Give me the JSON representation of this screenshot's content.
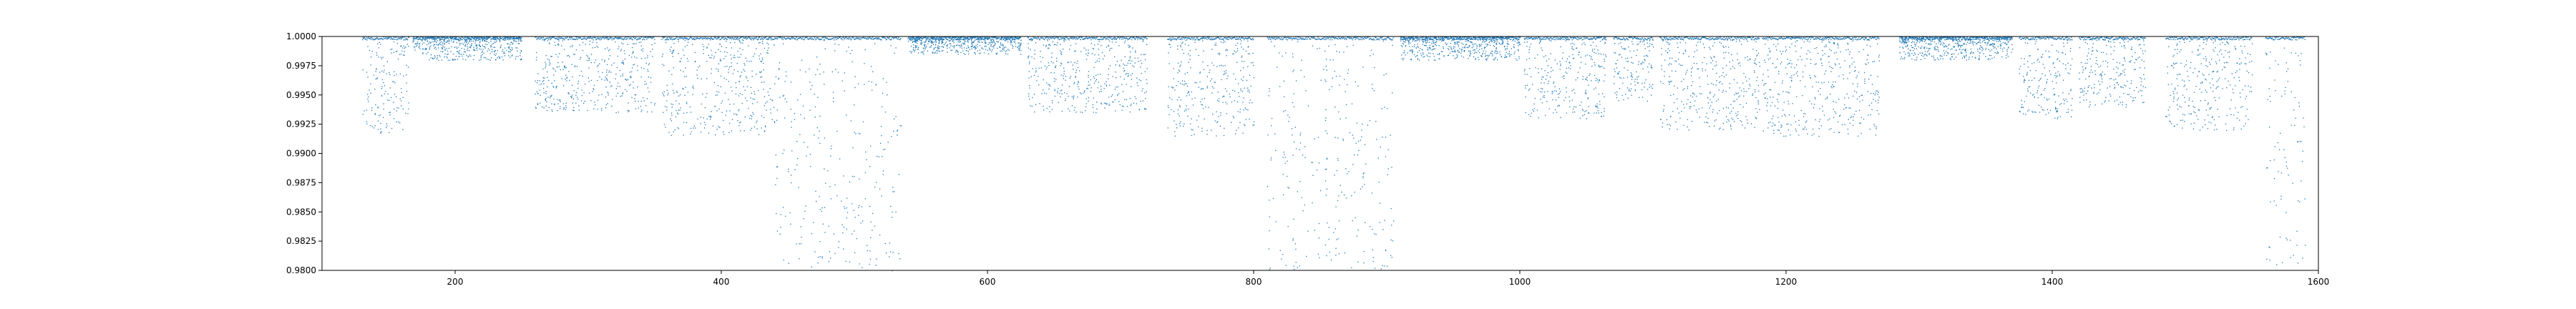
{
  "chart_data": {
    "type": "scatter",
    "title": "",
    "xlabel": "",
    "ylabel": "",
    "xlim": [
      100,
      1600
    ],
    "ylim": [
      0.98,
      1.0
    ],
    "x_ticks": [
      200,
      400,
      600,
      800,
      1000,
      1200,
      1400,
      1600
    ],
    "x_tick_labels": [
      "200",
      "400",
      "600",
      "800",
      "1000",
      "1200",
      "1400",
      "1600"
    ],
    "y_ticks": [
      0.98,
      0.9825,
      0.985,
      0.9875,
      0.99,
      0.9925,
      0.995,
      0.9975,
      1.0
    ],
    "y_tick_labels": [
      "0.9800",
      "0.9825",
      "0.9850",
      "0.9875",
      "0.9900",
      "0.9925",
      "0.9950",
      "0.9975",
      "1.0000"
    ],
    "grid": false,
    "series": [
      {
        "color": "#1f77b4",
        "marker": "point",
        "segments": [
          {
            "x": [
              130,
              165
            ],
            "y_min": 0.9915,
            "density": "medium"
          },
          {
            "x": [
              168,
              250
            ],
            "y_min": 0.998,
            "density": "dense"
          },
          {
            "x": [
              260,
              350
            ],
            "y_min": 0.9935,
            "density": "medium"
          },
          {
            "x": [
              355,
              440
            ],
            "y_min": 0.9915,
            "density": "medium"
          },
          {
            "x": [
              440,
              535
            ],
            "y_min": 0.98,
            "density": "sparse"
          },
          {
            "x": [
              540,
              625
            ],
            "y_min": 0.9985,
            "density": "dense"
          },
          {
            "x": [
              630,
              720
            ],
            "y_min": 0.9935,
            "density": "medium"
          },
          {
            "x": [
              735,
              800
            ],
            "y_min": 0.9915,
            "density": "medium"
          },
          {
            "x": [
              810,
              905
            ],
            "y_min": 0.98,
            "density": "sparse"
          },
          {
            "x": [
              910,
              1000
            ],
            "y_min": 0.998,
            "density": "dense"
          },
          {
            "x": [
              1003,
              1065
            ],
            "y_min": 0.993,
            "density": "medium"
          },
          {
            "x": [
              1070,
              1100
            ],
            "y_min": 0.9945,
            "density": "medium"
          },
          {
            "x": [
              1105,
              1180
            ],
            "y_min": 0.992,
            "density": "medium"
          },
          {
            "x": [
              1182,
              1270
            ],
            "y_min": 0.9915,
            "density": "medium"
          },
          {
            "x": [
              1285,
              1370
            ],
            "y_min": 0.998,
            "density": "dense"
          },
          {
            "x": [
              1375,
              1415
            ],
            "y_min": 0.993,
            "density": "medium"
          },
          {
            "x": [
              1420,
              1470
            ],
            "y_min": 0.994,
            "density": "medium"
          },
          {
            "x": [
              1485,
              1550
            ],
            "y_min": 0.992,
            "density": "medium"
          },
          {
            "x": [
              1560,
              1590
            ],
            "y_min": 0.98,
            "density": "sparse"
          }
        ]
      }
    ]
  }
}
